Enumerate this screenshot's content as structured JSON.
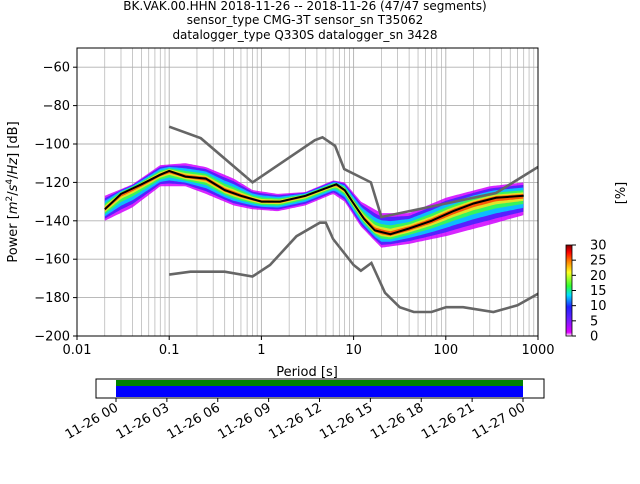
{
  "chart_data": [
    {
      "type": "heatmap",
      "title_lines": [
        "BK.VAK.00.HHN   2018-11-26 -- 2018-11-26  (47/47 segments)",
        "sensor_type CMG-3T sensor_sn T35062",
        "datalogger_type Q330S datalogger_sn 3428"
      ],
      "xlabel": "Period [s]",
      "ylabel_parts": [
        "Power [",
        "m",
        "2",
        "/",
        "s",
        "4",
        "/",
        "Hz",
        "] [dB]"
      ],
      "x_scale": "log",
      "xlim": [
        0.01,
        1000
      ],
      "ylim": [
        -200,
        -50
      ],
      "x_ticks": [
        {
          "v": 0.01,
          "label": "0.01"
        },
        {
          "v": 0.1,
          "label": "0.1"
        },
        {
          "v": 1,
          "label": "1"
        },
        {
          "v": 10,
          "label": "10"
        },
        {
          "v": 100,
          "label": "100"
        },
        {
          "v": 1000,
          "label": "1000"
        }
      ],
      "y_ticks": [
        {
          "v": -60,
          "label": "−60"
        },
        {
          "v": -80,
          "label": "−80"
        },
        {
          "v": -100,
          "label": "−100"
        },
        {
          "v": -120,
          "label": "−120"
        },
        {
          "v": -140,
          "label": "−140"
        },
        {
          "v": -160,
          "label": "−160"
        },
        {
          "v": -180,
          "label": "−180"
        },
        {
          "v": -200,
          "label": "−200"
        }
      ],
      "grid": true,
      "colorbar": {
        "label": "[%]",
        "range": [
          0,
          30
        ],
        "ticks": [
          {
            "v": 0,
            "label": "0"
          },
          {
            "v": 5,
            "label": "5"
          },
          {
            "v": 10,
            "label": "10"
          },
          {
            "v": 15,
            "label": "15"
          },
          {
            "v": 20,
            "label": "20"
          },
          {
            "v": 25,
            "label": "25"
          },
          {
            "v": 30,
            "label": "30"
          }
        ],
        "colors": [
          "#ffffff",
          "#e000ff",
          "#2020ff",
          "#00e0ff",
          "#30ff30",
          "#ffff20",
          "#ff8000",
          "#ff0000",
          "#800000"
        ]
      },
      "noise_model_high": [
        [
          0.1,
          -91
        ],
        [
          0.22,
          -97
        ],
        [
          0.8,
          -120
        ],
        [
          3.8,
          -98
        ],
        [
          4.6,
          -96.5
        ],
        [
          6.3,
          -101
        ],
        [
          7.9,
          -113
        ],
        [
          15.4,
          -120
        ],
        [
          20,
          -138
        ],
        [
          350,
          -125.5
        ],
        [
          1000,
          -112
        ]
      ],
      "noise_model_low": [
        [
          0.1,
          -168
        ],
        [
          0.17,
          -166.5
        ],
        [
          0.4,
          -166.5
        ],
        [
          0.8,
          -169
        ],
        [
          1.24,
          -163
        ],
        [
          2.4,
          -148
        ],
        [
          4.3,
          -141
        ],
        [
          5.0,
          -141
        ],
        [
          6.0,
          -149.5
        ],
        [
          10,
          -163
        ],
        [
          12,
          -166
        ],
        [
          15.6,
          -162
        ],
        [
          21.9,
          -177.5
        ],
        [
          31.6,
          -185
        ],
        [
          45,
          -187.5
        ],
        [
          70,
          -187.5
        ],
        [
          101,
          -185
        ],
        [
          154,
          -185
        ],
        [
          328,
          -187.5
        ],
        [
          600,
          -184
        ],
        [
          1000,
          -178
        ]
      ],
      "mean_curve": [
        [
          0.02,
          -134
        ],
        [
          0.03,
          -126
        ],
        [
          0.05,
          -121
        ],
        [
          0.08,
          -116
        ],
        [
          0.1,
          -114
        ],
        [
          0.15,
          -117
        ],
        [
          0.25,
          -118
        ],
        [
          0.4,
          -124
        ],
        [
          0.6,
          -127
        ],
        [
          1.0,
          -130
        ],
        [
          1.6,
          -130
        ],
        [
          3,
          -127
        ],
        [
          5,
          -123
        ],
        [
          6.5,
          -121
        ],
        [
          8,
          -124
        ],
        [
          10,
          -131
        ],
        [
          13,
          -139
        ],
        [
          17,
          -145
        ],
        [
          25,
          -147
        ],
        [
          40,
          -144
        ],
        [
          70,
          -140
        ],
        [
          120,
          -135
        ],
        [
          200,
          -131
        ],
        [
          350,
          -128
        ],
        [
          700,
          -127
        ]
      ],
      "density_bands": [
        {
          "from": [
            [
              0.02,
              -127
            ],
            [
              0.04,
              -121
            ],
            [
              0.08,
              -111
            ],
            [
              0.15,
              -110
            ],
            [
              0.25,
              -112
            ],
            [
              0.5,
              -118
            ],
            [
              0.8,
              -124
            ],
            [
              1.5,
              -126
            ],
            [
              3,
              -125
            ],
            [
              6,
              -119
            ],
            [
              8,
              -120
            ],
            [
              12,
              -130
            ],
            [
              20,
              -136
            ],
            [
              40,
              -136
            ],
            [
              100,
              -128
            ],
            [
              300,
              -122
            ],
            [
              700,
              -120
            ]
          ],
          "to": [
            [
              0.02,
              -140
            ],
            [
              0.04,
              -133
            ],
            [
              0.08,
              -122
            ],
            [
              0.15,
              -122
            ],
            [
              0.25,
              -126
            ],
            [
              0.5,
              -132
            ],
            [
              0.8,
              -134
            ],
            [
              1.5,
              -135
            ],
            [
              3,
              -132
            ],
            [
              6,
              -126
            ],
            [
              8,
              -130
            ],
            [
              12,
              -143
            ],
            [
              20,
              -154
            ],
            [
              40,
              -152
            ],
            [
              100,
              -148
            ],
            [
              300,
              -142
            ],
            [
              700,
              -137
            ]
          ]
        }
      ]
    },
    {
      "type": "table",
      "title": "",
      "x_ticks": [
        "11-26 00",
        "11-26 03",
        "11-26 06",
        "11-26 09",
        "11-26 12",
        "11-26 15",
        "11-26 18",
        "11-26 21",
        "11-27 00"
      ],
      "series": [
        {
          "color": "#008000",
          "start": 0,
          "end": 24
        },
        {
          "color": "#0000ff",
          "start": 0,
          "end": 24
        }
      ]
    }
  ]
}
